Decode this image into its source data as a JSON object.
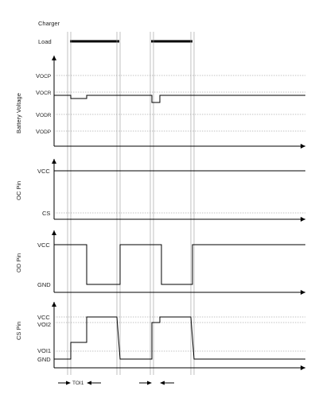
{
  "top": {
    "charger": "Charger",
    "load": "Load"
  },
  "panels": [
    {
      "id": "battery",
      "ylabel": "Battery Voltage",
      "levels": [
        {
          "key": "vocp",
          "main": "V",
          "sub": "OCP"
        },
        {
          "key": "vocr",
          "main": "V",
          "sub": "OCR"
        },
        {
          "key": "vodr",
          "main": "V",
          "sub": "ODR"
        },
        {
          "key": "vodp",
          "main": "V",
          "sub": "ODP"
        }
      ]
    },
    {
      "id": "oc",
      "ylabel": "OC Pin",
      "levels": [
        {
          "key": "vcc",
          "main": "VCC",
          "sub": ""
        },
        {
          "key": "cs",
          "main": "CS",
          "sub": ""
        }
      ]
    },
    {
      "id": "od",
      "ylabel": "OD Pin",
      "levels": [
        {
          "key": "vcc",
          "main": "VCC",
          "sub": ""
        },
        {
          "key": "gnd",
          "main": "GND",
          "sub": ""
        }
      ]
    },
    {
      "id": "cs",
      "ylabel": "CS Pin",
      "levels": [
        {
          "key": "vcc",
          "main": "VCC",
          "sub": ""
        },
        {
          "key": "voi2",
          "main": "VOI2",
          "sub": ""
        },
        {
          "key": "voi1",
          "main": "VOI1",
          "sub": ""
        },
        {
          "key": "gnd",
          "main": "GND",
          "sub": ""
        }
      ]
    }
  ],
  "timing": {
    "toi1": "TOI1"
  }
}
